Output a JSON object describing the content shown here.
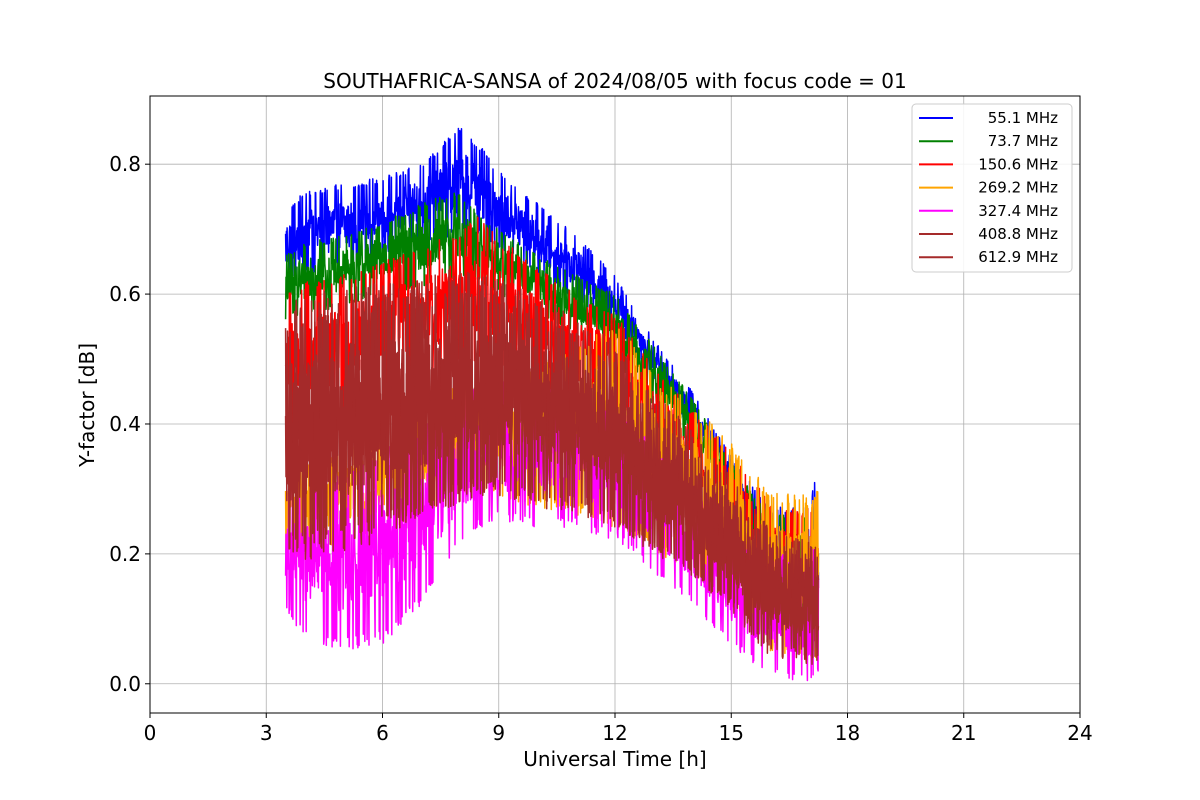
{
  "chart_data": {
    "type": "line",
    "title": "SOUTHAFRICA-SANSA of 2024/08/05 with focus code = 01",
    "xlabel": "Universal Time [h]",
    "ylabel": "Y-factor [dB]",
    "xlim": [
      0,
      24
    ],
    "ylim": [
      -0.045,
      0.905
    ],
    "xticks": [
      0,
      3,
      6,
      9,
      12,
      15,
      18,
      21,
      24
    ],
    "xtick_labels": [
      "0",
      "3",
      "6",
      "9",
      "12",
      "15",
      "18",
      "21",
      "24"
    ],
    "yticks": [
      0.0,
      0.2,
      0.4,
      0.6,
      0.8
    ],
    "ytick_labels": [
      "0.0",
      "0.2",
      "0.4",
      "0.6",
      "0.8"
    ],
    "grid": true,
    "legend_position": "top-right",
    "data_range_hours": [
      3.5,
      17.25
    ],
    "series": [
      {
        "name": "  55.1 MHz",
        "color": "#0000ff",
        "x": [
          3.5,
          4,
          5,
          6,
          7,
          8,
          8.5,
          9,
          10,
          11,
          12,
          12.5,
          13,
          14,
          15,
          16,
          17,
          17.25
        ],
        "min": [
          0.62,
          0.63,
          0.64,
          0.66,
          0.68,
          0.69,
          0.69,
          0.67,
          0.63,
          0.59,
          0.55,
          0.51,
          0.47,
          0.39,
          0.29,
          0.16,
          0.1,
          0.1
        ],
        "max": [
          0.73,
          0.76,
          0.77,
          0.78,
          0.8,
          0.86,
          0.83,
          0.79,
          0.74,
          0.69,
          0.63,
          0.58,
          0.53,
          0.45,
          0.35,
          0.27,
          0.28,
          0.33
        ]
      },
      {
        "name": "  73.7 MHz",
        "color": "#008000",
        "x": [
          3.5,
          4,
          5,
          6,
          7,
          8,
          8.5,
          9,
          10,
          11,
          12,
          12.5,
          13,
          14,
          15,
          16,
          17,
          17.25
        ],
        "min": [
          0.56,
          0.57,
          0.58,
          0.6,
          0.61,
          0.62,
          0.62,
          0.6,
          0.57,
          0.54,
          0.5,
          0.46,
          0.43,
          0.36,
          0.26,
          0.13,
          0.08,
          0.08
        ],
        "max": [
          0.66,
          0.68,
          0.69,
          0.71,
          0.74,
          0.76,
          0.72,
          0.7,
          0.66,
          0.63,
          0.6,
          0.56,
          0.52,
          0.44,
          0.34,
          0.26,
          0.27,
          0.29
        ]
      },
      {
        "name": "150.6 MHz",
        "color": "#ff0000",
        "x": [
          3.5,
          4,
          5,
          6,
          7,
          8,
          8.5,
          9,
          10,
          11,
          12,
          12.5,
          13,
          14,
          15,
          16,
          17,
          17.25
        ],
        "min": [
          0.39,
          0.4,
          0.42,
          0.45,
          0.47,
          0.49,
          0.49,
          0.48,
          0.45,
          0.43,
          0.4,
          0.37,
          0.34,
          0.29,
          0.22,
          0.12,
          0.08,
          0.08
        ],
        "max": [
          0.6,
          0.62,
          0.63,
          0.65,
          0.67,
          0.7,
          0.72,
          0.69,
          0.64,
          0.6,
          0.57,
          0.53,
          0.49,
          0.42,
          0.36,
          0.28,
          0.27,
          0.28
        ]
      },
      {
        "name": "269.2 MHz",
        "color": "#ffa500",
        "x": [
          3.5,
          4,
          5,
          6,
          7,
          8,
          8.5,
          9,
          10,
          11,
          12,
          12.5,
          13,
          14,
          15,
          16,
          17,
          17.25
        ],
        "min": [
          0.19,
          0.2,
          0.21,
          0.23,
          0.26,
          0.29,
          0.3,
          0.29,
          0.27,
          0.26,
          0.24,
          0.22,
          0.2,
          0.16,
          0.11,
          0.05,
          0.04,
          0.04
        ],
        "max": [
          0.33,
          0.34,
          0.36,
          0.4,
          0.43,
          0.46,
          0.46,
          0.47,
          0.49,
          0.52,
          0.56,
          0.52,
          0.48,
          0.43,
          0.37,
          0.3,
          0.29,
          0.3
        ]
      },
      {
        "name": "327.4 MHz",
        "color": "#ff00ff",
        "x": [
          3.5,
          4,
          5,
          6,
          7,
          8,
          8.5,
          9,
          10,
          11,
          12,
          12.5,
          13,
          14,
          15,
          16,
          17,
          17.25
        ],
        "min": [
          0.11,
          0.07,
          0.05,
          0.06,
          0.12,
          0.22,
          0.24,
          0.25,
          0.24,
          0.24,
          0.22,
          0.2,
          0.17,
          0.12,
          0.06,
          0.01,
          0.0,
          0.01
        ],
        "max": [
          0.3,
          0.31,
          0.33,
          0.37,
          0.4,
          0.45,
          0.46,
          0.47,
          0.46,
          0.45,
          0.43,
          0.4,
          0.37,
          0.3,
          0.23,
          0.2,
          0.2,
          0.22
        ]
      },
      {
        "name": "408.8 MHz",
        "color": "#a52a2a",
        "x": [
          3.5,
          4,
          5,
          6,
          7,
          8,
          8.5,
          9,
          10,
          11,
          12,
          12.5,
          13,
          14,
          15,
          16,
          17,
          17.25
        ],
        "min": [
          0.18,
          0.19,
          0.2,
          0.22,
          0.25,
          0.28,
          0.29,
          0.29,
          0.27,
          0.26,
          0.24,
          0.22,
          0.2,
          0.16,
          0.11,
          0.04,
          0.03,
          0.03
        ],
        "max": [
          0.58,
          0.6,
          0.61,
          0.62,
          0.63,
          0.64,
          0.64,
          0.63,
          0.6,
          0.57,
          0.53,
          0.49,
          0.45,
          0.39,
          0.32,
          0.24,
          0.22,
          0.22
        ]
      },
      {
        "name": "612.9 MHz",
        "color": "#a52a2a",
        "x": [
          3.5,
          4,
          5,
          6,
          7,
          8,
          8.5,
          9,
          10,
          11,
          12,
          12.5,
          13,
          14,
          15,
          16,
          17,
          17.25
        ],
        "min": [
          0.2,
          0.21,
          0.22,
          0.24,
          0.26,
          0.29,
          0.3,
          0.3,
          0.28,
          0.27,
          0.25,
          0.23,
          0.21,
          0.17,
          0.12,
          0.05,
          0.04,
          0.05
        ],
        "max": [
          0.55,
          0.57,
          0.58,
          0.59,
          0.6,
          0.61,
          0.61,
          0.6,
          0.57,
          0.54,
          0.5,
          0.46,
          0.42,
          0.36,
          0.29,
          0.22,
          0.2,
          0.2
        ]
      }
    ]
  }
}
